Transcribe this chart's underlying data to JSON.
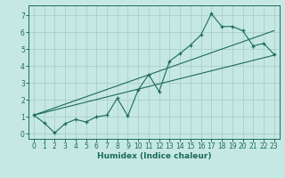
{
  "xlabel": "Humidex (Indice chaleur)",
  "background_color": "#c6e8e2",
  "grid_color": "#a8cfc8",
  "line_color": "#1a6b5a",
  "xlim": [
    -0.5,
    23.5
  ],
  "ylim": [
    -0.3,
    7.6
  ],
  "xticks": [
    0,
    1,
    2,
    3,
    4,
    5,
    6,
    7,
    8,
    9,
    10,
    11,
    12,
    13,
    14,
    15,
    16,
    17,
    18,
    19,
    20,
    21,
    22,
    23
  ],
  "yticks": [
    0,
    1,
    2,
    3,
    4,
    5,
    6,
    7
  ],
  "series1_x": [
    0,
    1,
    2,
    3,
    4,
    5,
    6,
    7,
    8,
    9,
    10,
    11,
    12,
    13,
    14,
    15,
    16,
    17,
    18,
    19,
    20,
    21,
    22,
    23
  ],
  "series1_y": [
    1.1,
    0.65,
    0.05,
    0.6,
    0.85,
    0.7,
    1.0,
    1.1,
    2.1,
    1.05,
    2.6,
    3.5,
    2.5,
    4.3,
    4.75,
    5.25,
    5.85,
    7.1,
    6.35,
    6.35,
    6.1,
    5.2,
    5.35,
    4.7
  ],
  "line1_x": [
    0,
    23
  ],
  "line1_y": [
    1.1,
    4.65
  ],
  "line2_x": [
    0,
    23
  ],
  "line2_y": [
    1.1,
    6.1
  ]
}
